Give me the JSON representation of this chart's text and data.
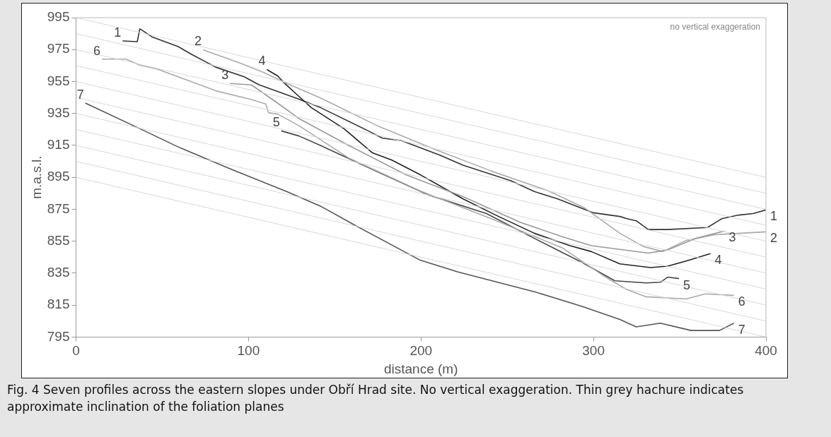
{
  "chart_data": {
    "type": "line",
    "xlabel": "distance (m)",
    "ylabel": "m.a.s.l.",
    "xlim": [
      0,
      400
    ],
    "ylim": [
      795,
      995
    ],
    "xticks": [
      0,
      100,
      200,
      300,
      400
    ],
    "yticks": [
      795,
      815,
      835,
      855,
      875,
      895,
      915,
      935,
      955,
      975,
      995
    ],
    "annotations": [
      "no vertical exaggeration",
      "Fig. 4 Seven profiles across the eastern slopes under Obří Hrad site. No vertical exaggeration. Thin grey hachure indicates approximate inclination of the foliation planes"
    ],
    "series": [
      {
        "color": "#d9d9d9",
        "x": [
          0,
          400
        ],
        "values": [
          895,
          795
        ]
      },
      {
        "color": "#d9d9d9",
        "x": [
          0,
          400
        ],
        "values": [
          905,
          805
        ]
      },
      {
        "color": "#d9d9d9",
        "x": [
          0,
          400
        ],
        "values": [
          915,
          815
        ]
      },
      {
        "color": "#d9d9d9",
        "x": [
          0,
          400
        ],
        "values": [
          925,
          825
        ]
      },
      {
        "color": "#d9d9d9",
        "x": [
          0,
          400
        ],
        "values": [
          935,
          835
        ]
      },
      {
        "color": "#d9d9d9",
        "x": [
          0,
          400
        ],
        "values": [
          945,
          845
        ]
      },
      {
        "color": "#d9d9d9",
        "x": [
          0,
          400
        ],
        "values": [
          955,
          855
        ]
      },
      {
        "color": "#d9d9d9",
        "x": [
          0,
          400
        ],
        "values": [
          965,
          865
        ]
      },
      {
        "color": "#d9d9d9",
        "x": [
          0,
          400
        ],
        "values": [
          975,
          875
        ]
      },
      {
        "color": "#d9d9d9",
        "x": [
          0,
          400
        ],
        "values": [
          985,
          885
        ]
      },
      {
        "color": "#d9d9d9",
        "x": [
          0,
          400
        ],
        "values": [
          995,
          895
        ]
      },
      {
        "name": "7",
        "color": "#555555",
        "x": [
          5.4,
          39.7,
          60.3,
          89,
          122.3,
          141.7,
          162.4,
          199.6,
          221.5,
          265.7,
          293.4,
          315.3,
          324.8,
          338.8,
          356.6,
          373.1,
          381.4
        ],
        "values": [
          941.5,
          924.1,
          913.5,
          900.5,
          886,
          877,
          864.6,
          843.1,
          835.7,
          823.4,
          814.2,
          806,
          801.4,
          803.7,
          799.1,
          799.1,
          803.7
        ]
      },
      {
        "name": "6",
        "color": "#aaaaaa",
        "x": [
          15,
          28.9,
          37,
          46.7,
          60.3,
          81,
          101.7,
          110,
          111.6,
          117,
          129.3,
          158.3,
          199.6,
          241,
          282,
          307,
          319.4,
          330.6,
          353.7,
          364.9,
          381.4
        ],
        "values": [
          969,
          969,
          965.3,
          963,
          957.5,
          949.2,
          943.7,
          941,
          935.5,
          934.6,
          927.3,
          907,
          886.5,
          869,
          850.8,
          832.5,
          824.7,
          820.2,
          818.8,
          822,
          821.1
        ]
      },
      {
        "name": "5",
        "color": "#444444",
        "x": [
          119,
          129.3,
          141.7,
          169.4,
          203.7,
          238,
          265.7,
          293.4,
          312.4,
          330.6,
          338.8,
          343,
          349.6
        ],
        "values": [
          924.1,
          920.9,
          915,
          901.2,
          884.2,
          872.3,
          856.8,
          841.7,
          830.2,
          828.9,
          829.3,
          832.5,
          831.6
        ]
      },
      {
        "name": "3",
        "color": "#999999",
        "x": [
          89.3,
          101.7,
          115.7,
          129.3,
          158.3,
          191.3,
          224.4,
          257.4,
          282.2,
          298.8,
          331.8,
          343,
          359.5,
          376
        ],
        "values": [
          953.8,
          952.9,
          942.4,
          931.8,
          914.9,
          896.6,
          882.9,
          866.9,
          857.7,
          852.2,
          847.6,
          849.5,
          856.8,
          861.4
        ]
      },
      {
        "name": "2",
        "color": "#aaaaaa",
        "x": [
          73.6,
          95,
          108.7,
          122.3,
          141.7,
          174.8,
          207.9,
          240.9,
          274,
          294.6,
          315.3,
          328.9,
          340.1,
          353.7,
          370.2,
          400
        ],
        "values": [
          974.9,
          966.6,
          960.7,
          953.8,
          944.7,
          927.3,
          912.6,
          898.9,
          886.5,
          876,
          860,
          851.7,
          848.5,
          855.4,
          859.1,
          860.9
        ]
      },
      {
        "name": "4",
        "color": "#222222",
        "x": [
          110.7,
          117,
          121,
          129.3,
          136.4,
          155.4,
          171.9,
          183.1,
          199.6,
          224.4,
          245,
          265.7,
          286.4,
          298.8,
          315.3,
          333.1,
          343,
          353.7,
          367.8
        ],
        "values": [
          962.5,
          958.4,
          953.8,
          945.6,
          938.7,
          925.4,
          910.3,
          905.8,
          896.6,
          881.5,
          870.5,
          860,
          852.2,
          848.5,
          840.8,
          838.5,
          839.4,
          842.6,
          847.2
        ]
      },
      {
        "name": "1",
        "color": "#333333",
        "x": [
          27,
          35.5,
          37,
          38.5,
          44,
          59,
          67,
          81,
          97.5,
          106,
          129,
          141.7,
          169.4,
          177.7,
          188.4,
          210.7,
          224.4,
          252.1,
          265.7,
          279.3,
          300,
          315.3,
          319.4,
          324.8,
          331.8,
          343,
          366.1,
          374.4,
          384.3,
          392.6,
          400
        ],
        "values": [
          980.4,
          980,
          988,
          987,
          983,
          977,
          972,
          964,
          958,
          953,
          944,
          938.7,
          924.1,
          919.5,
          918.1,
          909,
          902.6,
          892.9,
          886.1,
          881.5,
          872.8,
          870.5,
          869.1,
          867.8,
          862.3,
          862.3,
          863.6,
          869.1,
          871.4,
          872.3,
          874.6
        ]
      }
    ]
  }
}
